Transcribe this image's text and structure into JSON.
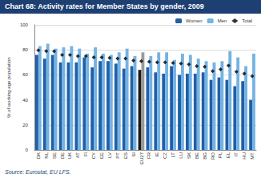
{
  "chart_data": {
    "type": "bar",
    "title": "Chart 68: Activity rates for Member States by gender, 2009",
    "source": "Source: Eurostat, EU LFS.",
    "y_label": "% of working age population",
    "categories": [
      "DK",
      "NL",
      "SE",
      "DE",
      "UK",
      "AT",
      "FI",
      "CY",
      "EE",
      "LV",
      "PT",
      "ES",
      "SI",
      "EU27",
      "FR",
      "IE",
      "CZ",
      "LT",
      "LU",
      "SK",
      "BE",
      "BG",
      "RO",
      "PL",
      "EL",
      "IT",
      "HU",
      "MT"
    ],
    "series": [
      {
        "name": "Women",
        "type": "bar",
        "color": "#1f5fa8",
        "colors": [
          "#1f5fa8",
          "#1f5fa8",
          "#1f5fa8",
          "#1f5fa8",
          "#1f5fa8",
          "#1f5fa8",
          "#1f5fa8",
          "#1f5fa8",
          "#1f5fa8",
          "#1f5fa8",
          "#1f5fa8",
          "#1f5fa8",
          "#1f5fa8",
          "#1a1a1a",
          "#1f5fa8",
          "#1f5fa8",
          "#1f5fa8",
          "#1f5fa8",
          "#1f5fa8",
          "#1f5fa8",
          "#1f5fa8",
          "#1f5fa8",
          "#1f5fa8",
          "#1f5fa8",
          "#1f5fa8",
          "#1f5fa8",
          "#1f5fa8",
          "#1f5fa8"
        ],
        "values": [
          76,
          73,
          76,
          70,
          70,
          70,
          74,
          66,
          71,
          71,
          69,
          65,
          67,
          64,
          66,
          62,
          61,
          67,
          60,
          61,
          61,
          62,
          56,
          58,
          56,
          51,
          55,
          40
        ]
      },
      {
        "name": "Men",
        "type": "bar",
        "color": "#74b3e3",
        "colors": [
          "#74b3e3",
          "#74b3e3",
          "#74b3e3",
          "#74b3e3",
          "#74b3e3",
          "#74b3e3",
          "#74b3e3",
          "#74b3e3",
          "#74b3e3",
          "#74b3e3",
          "#74b3e3",
          "#74b3e3",
          "#74b3e3",
          "#9a9a9a",
          "#74b3e3",
          "#74b3e3",
          "#74b3e3",
          "#74b3e3",
          "#74b3e3",
          "#74b3e3",
          "#74b3e3",
          "#74b3e3",
          "#74b3e3",
          "#74b3e3",
          "#74b3e3",
          "#74b3e3",
          "#74b3e3",
          "#74b3e3"
        ],
        "values": [
          83,
          85,
          81,
          82,
          83,
          81,
          77,
          82,
          77,
          76,
          78,
          81,
          75,
          78,
          75,
          78,
          78,
          72,
          77,
          76,
          73,
          71,
          70,
          71,
          79,
          74,
          67,
          77
        ]
      },
      {
        "name": "Total",
        "type": "scatter",
        "marker": "diamond",
        "color": "#000000",
        "values": [
          79.6,
          79,
          78.9,
          76,
          76,
          75,
          75,
          74,
          74,
          73.5,
          73,
          73,
          71.5,
          71,
          70.5,
          70,
          70,
          69.5,
          69,
          68.5,
          67,
          66.5,
          63,
          64.5,
          67.5,
          62.5,
          61,
          59
        ]
      }
    ],
    "ylim": [
      0,
      100
    ],
    "yticks": [
      0,
      20,
      40,
      60,
      80,
      100
    ],
    "grid": true,
    "legend": "top-right"
  }
}
